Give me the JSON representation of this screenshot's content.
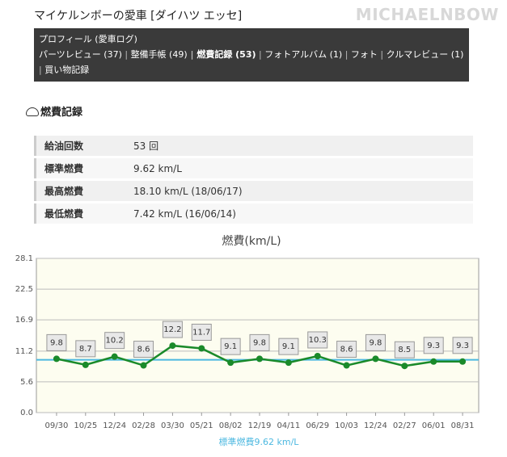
{
  "header": {
    "title": "マイケルンボーの愛車 [ダイハツ エッセ]",
    "watermark": "MICHAELNBOW"
  },
  "nav": {
    "profile": "プロフィール (愛車ログ)",
    "links": [
      "パーツレビュー (37)",
      "整備手帳 (49)",
      "燃費記録 (53)",
      "フォトアルバム (1)",
      "フォト",
      "クルマレビュー (1)",
      "買い物記録"
    ]
  },
  "section": {
    "title": "燃費記録"
  },
  "table": {
    "rows": [
      [
        "給油回数",
        "53 回"
      ],
      [
        "標準燃費",
        "9.62 km/L"
      ],
      [
        "最高燃費",
        "18.10 km/L (18/06/17)"
      ],
      [
        "最低燃費",
        "7.42 km/L (16/06/14)"
      ]
    ]
  },
  "chart_data": {
    "type": "line",
    "title": "燃費(km/L)",
    "categories": [
      "09/30",
      "10/25",
      "12/24",
      "02/28",
      "03/30",
      "05/21",
      "08/02",
      "12/19",
      "04/11",
      "06/29",
      "10/03",
      "12/24",
      "02/27",
      "06/01",
      "08/31"
    ],
    "series": [
      {
        "name": "燃費",
        "color": "#1a8a2a",
        "values": [
          9.8,
          8.7,
          10.2,
          8.6,
          12.2,
          11.7,
          9.1,
          9.8,
          9.1,
          10.3,
          8.6,
          9.8,
          8.5,
          9.3,
          9.3
        ]
      }
    ],
    "reference": {
      "value": 9.62,
      "label": "標準燃費9.62 km/L",
      "color": "#4cb8e0"
    },
    "ylim": [
      0,
      28.1
    ],
    "yticks": [
      {
        "value": 0,
        "label": "0.0"
      },
      {
        "value": 5.6,
        "label": "5.6"
      },
      {
        "value": 11.2,
        "label": "11.2"
      },
      {
        "value": 16.9,
        "label": "16.9"
      },
      {
        "value": 22.5,
        "label": "22.5"
      },
      {
        "value": 28.1,
        "label": "28.1"
      }
    ],
    "grid": true
  }
}
